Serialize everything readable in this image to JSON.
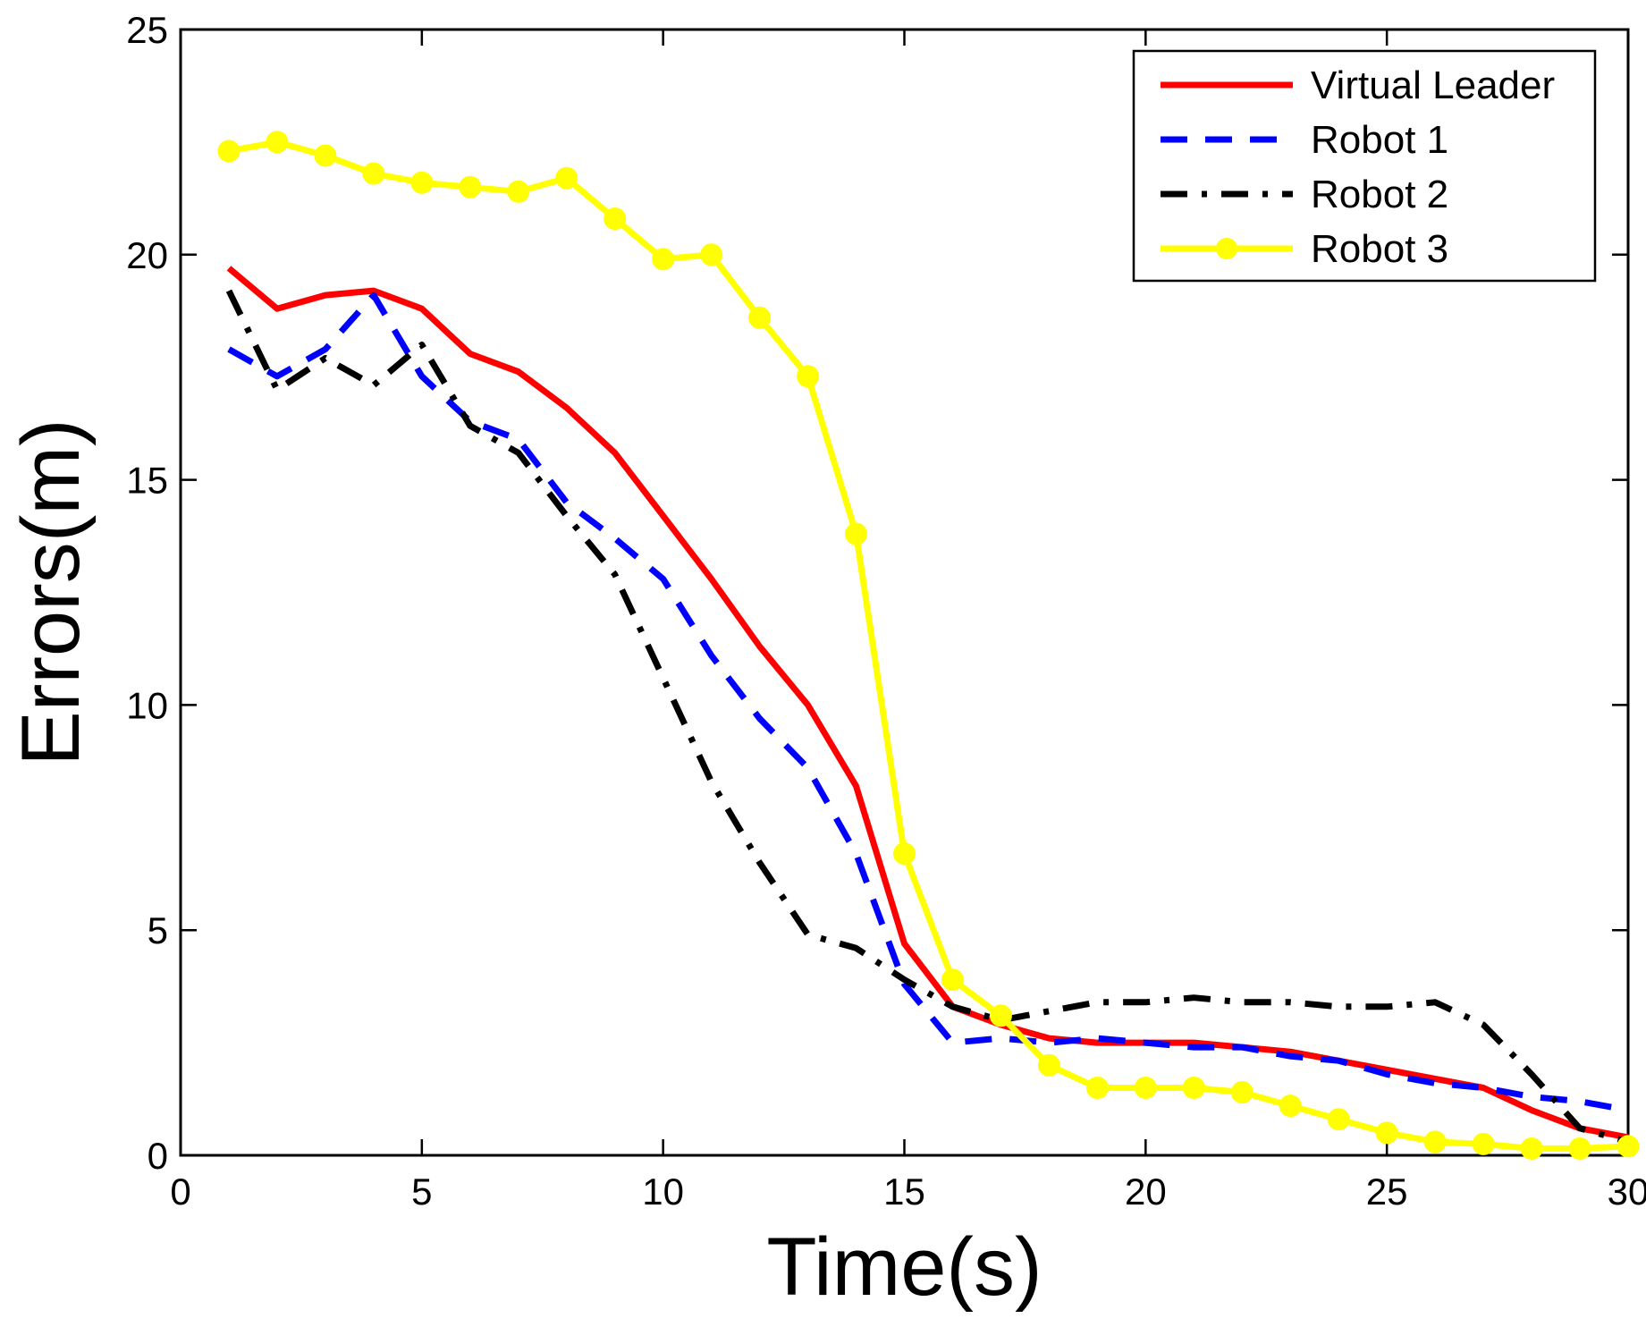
{
  "chart_data": {
    "type": "line",
    "xlabel": "Time(s)",
    "ylabel": "Errors(m)",
    "xlim": [
      0,
      30
    ],
    "ylim": [
      0,
      25
    ],
    "xticks": [
      "0",
      "5",
      "10",
      "15",
      "20",
      "25",
      "30"
    ],
    "yticks": [
      "0",
      "5",
      "10",
      "15",
      "20",
      "25"
    ],
    "grid": false,
    "legend_position": "top-right",
    "series": [
      {
        "name": "Virtual Leader",
        "color": "#ff0000",
        "style": "solid",
        "x": [
          1,
          2,
          3,
          4,
          5,
          6,
          7,
          8,
          9,
          10,
          11,
          12,
          13,
          14,
          15,
          16,
          17,
          18,
          19,
          20,
          21,
          22,
          23,
          24,
          25,
          26,
          27,
          28,
          29,
          30
        ],
        "y": [
          19.7,
          18.8,
          19.1,
          19.2,
          18.8,
          17.8,
          17.4,
          16.6,
          15.6,
          14.2,
          12.8,
          11.3,
          10.0,
          8.2,
          4.7,
          3.3,
          2.9,
          2.6,
          2.5,
          2.5,
          2.5,
          2.4,
          2.3,
          2.1,
          1.9,
          1.7,
          1.5,
          1.0,
          0.6,
          0.4
        ]
      },
      {
        "name": "Robot 1",
        "color": "#0000ff",
        "style": "dashed",
        "x": [
          1,
          2,
          3,
          4,
          5,
          6,
          7,
          8,
          9,
          10,
          11,
          12,
          13,
          14,
          15,
          16,
          17,
          18,
          19,
          20,
          21,
          22,
          23,
          24,
          25,
          26,
          27,
          28,
          29,
          30
        ],
        "y": [
          17.9,
          17.3,
          17.9,
          19.1,
          17.3,
          16.3,
          15.9,
          14.5,
          13.7,
          12.8,
          11.1,
          9.7,
          8.6,
          6.7,
          3.8,
          2.5,
          2.6,
          2.5,
          2.6,
          2.5,
          2.4,
          2.4,
          2.2,
          2.1,
          1.8,
          1.6,
          1.5,
          1.3,
          1.2,
          1.0
        ]
      },
      {
        "name": "Robot 2",
        "color": "#000000",
        "style": "dashdot",
        "x": [
          1,
          2,
          3,
          4,
          5,
          6,
          7,
          8,
          9,
          10,
          11,
          12,
          13,
          14,
          15,
          16,
          17,
          18,
          19,
          20,
          21,
          22,
          23,
          24,
          25,
          26,
          27,
          28,
          29,
          30
        ],
        "y": [
          19.2,
          17.0,
          17.7,
          17.1,
          18.0,
          16.2,
          15.6,
          14.2,
          12.9,
          10.6,
          8.3,
          6.5,
          4.9,
          4.6,
          3.9,
          3.3,
          3.0,
          3.2,
          3.4,
          3.4,
          3.5,
          3.4,
          3.4,
          3.3,
          3.3,
          3.4,
          2.9,
          1.8,
          0.6,
          0.3
        ]
      },
      {
        "name": "Robot 3",
        "color": "#ffff00",
        "style": "solid-marker",
        "x": [
          1,
          2,
          3,
          4,
          5,
          6,
          7,
          8,
          9,
          10,
          11,
          12,
          13,
          14,
          15,
          16,
          17,
          18,
          19,
          20,
          21,
          22,
          23,
          24,
          25,
          26,
          27,
          28,
          29,
          30
        ],
        "y": [
          22.3,
          22.5,
          22.2,
          21.8,
          21.6,
          21.5,
          21.4,
          21.7,
          20.8,
          19.9,
          20.0,
          18.6,
          17.3,
          13.8,
          6.7,
          3.9,
          3.1,
          2.0,
          1.5,
          1.5,
          1.5,
          1.4,
          1.1,
          0.8,
          0.5,
          0.3,
          0.25,
          0.15,
          0.15,
          0.2
        ]
      }
    ]
  }
}
